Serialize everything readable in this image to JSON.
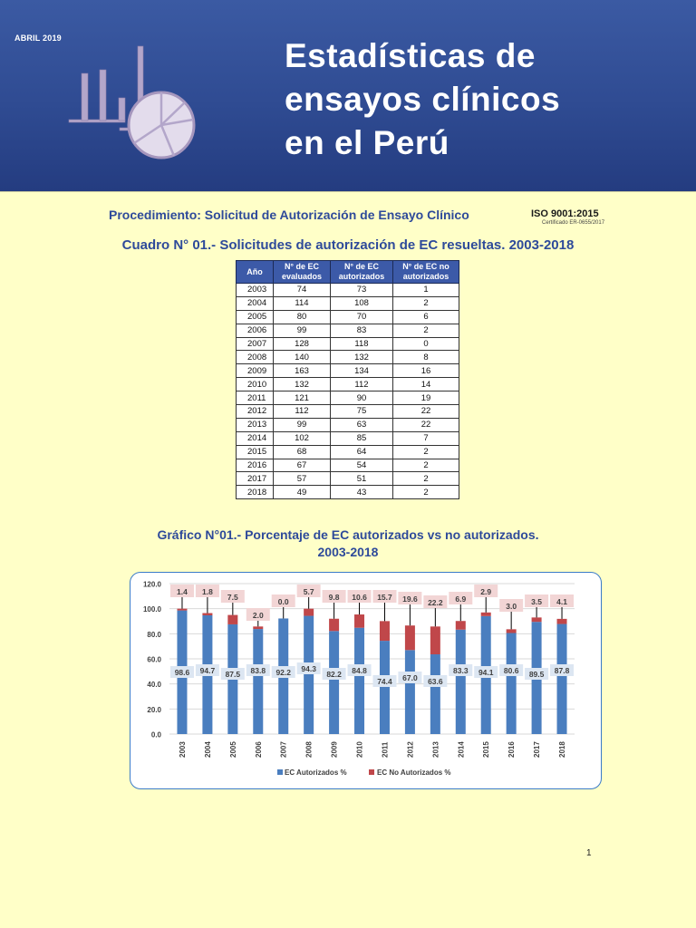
{
  "banner": {
    "date": "ABRIL 2019",
    "title_lines": [
      "Estadísticas de",
      "ensayos clínicos",
      "en el Perú"
    ],
    "logo_icon": "bar-and-pie-chart-icon",
    "colors": {
      "background": "#2f4b92",
      "logo": "#b7a9cc"
    }
  },
  "procedure": {
    "title": "Procedimiento: Solicitud de Autorización de Ensayo Clínico",
    "iso_label": "ISO 9001:2015",
    "iso_certificate": "Certificado ER-0655/2017"
  },
  "table": {
    "title": "Cuadro N° 01.- Solicitudes de autorización de EC resueltas. 2003-2018",
    "headers": [
      [
        "Año"
      ],
      [
        "N° de EC",
        "evaluados"
      ],
      [
        "N° de EC",
        "autorizados"
      ],
      [
        "N° de EC no",
        "autorizados"
      ]
    ],
    "rows": [
      [
        "2003",
        "74",
        "73",
        "1"
      ],
      [
        "2004",
        "114",
        "108",
        "2"
      ],
      [
        "2005",
        "80",
        "70",
        "6"
      ],
      [
        "2006",
        "99",
        "83",
        "2"
      ],
      [
        "2007",
        "128",
        "118",
        "0"
      ],
      [
        "2008",
        "140",
        "132",
        "8"
      ],
      [
        "2009",
        "163",
        "134",
        "16"
      ],
      [
        "2010",
        "132",
        "112",
        "14"
      ],
      [
        "2011",
        "121",
        "90",
        "19"
      ],
      [
        "2012",
        "112",
        "75",
        "22"
      ],
      [
        "2013",
        "99",
        "63",
        "22"
      ],
      [
        "2014",
        "102",
        "85",
        "7"
      ],
      [
        "2015",
        "68",
        "64",
        "2"
      ],
      [
        "2016",
        "67",
        "54",
        "2"
      ],
      [
        "2017",
        "57",
        "51",
        "2"
      ],
      [
        "2018",
        "49",
        "43",
        "2"
      ]
    ],
    "header_color": "#3c5aa8"
  },
  "chart": {
    "title_line1": "Gráfico N°01.- Porcentaje de EC autorizados vs no autorizados.",
    "title_line2": "2003-2018"
  },
  "chart_data": {
    "type": "bar",
    "stacked": true,
    "title": "Gráfico N°01.- Porcentaje de EC autorizados vs no autorizados. 2003-2018",
    "xlabel": "",
    "ylabel": "",
    "ylim": [
      0,
      120
    ],
    "yticks": [
      "0.0",
      "20.0",
      "40.0",
      "60.0",
      "80.0",
      "100.0",
      "120.0"
    ],
    "grid": true,
    "legend_position": "bottom",
    "categories": [
      "2003",
      "2004",
      "2005",
      "2006",
      "2007",
      "2008",
      "2009",
      "2010",
      "2011",
      "2012",
      "2013",
      "2014",
      "2015",
      "2016",
      "2017",
      "2018"
    ],
    "series": [
      {
        "name": "EC Autorizados %",
        "color": "#4a7ebf",
        "values": [
          98.6,
          94.7,
          87.5,
          83.8,
          92.2,
          94.3,
          82.2,
          84.8,
          74.4,
          67.0,
          63.6,
          83.3,
          94.1,
          80.6,
          89.5,
          87.8
        ]
      },
      {
        "name": "EC No Autorizados %",
        "color": "#c0474a",
        "values": [
          1.4,
          1.8,
          7.5,
          2.0,
          0.0,
          5.7,
          9.8,
          10.6,
          15.7,
          19.6,
          22.2,
          6.9,
          2.9,
          3.0,
          3.5,
          4.1
        ]
      }
    ]
  },
  "page_number": "1"
}
